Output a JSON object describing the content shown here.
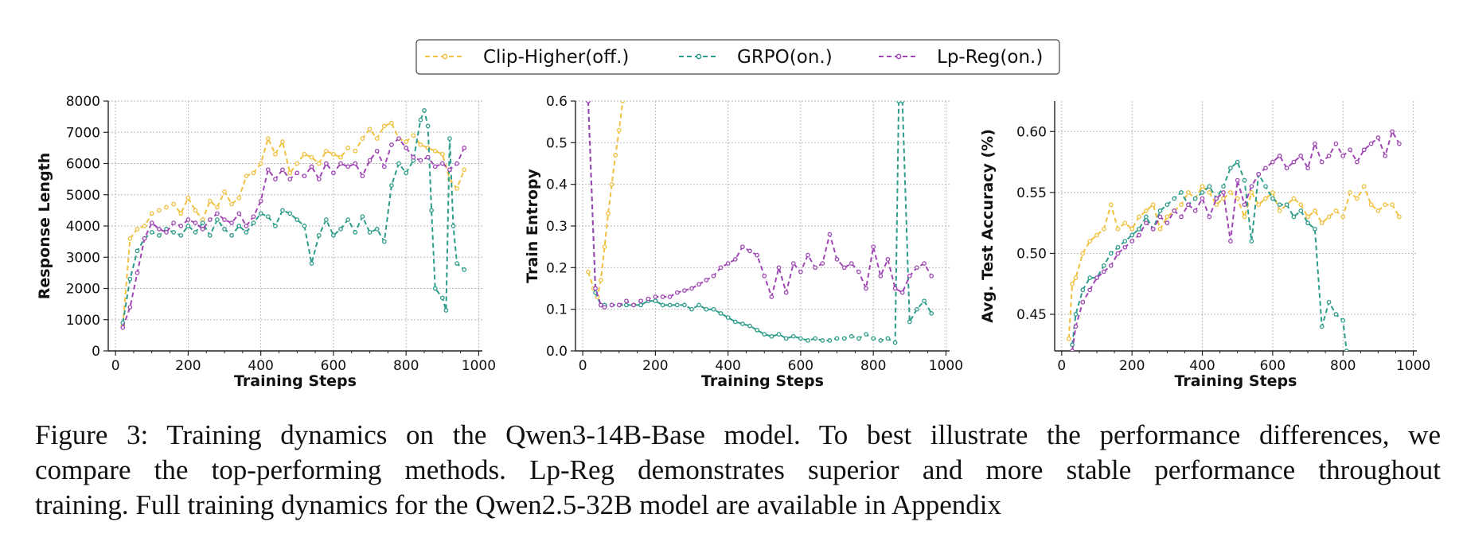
{
  "legend": {
    "entries": [
      {
        "label": "Clip-Higher(off.)",
        "color": "#f0c040",
        "key": "clip"
      },
      {
        "label": "GRPO(on.)",
        "color": "#2e9c8a",
        "key": "grpo"
      },
      {
        "label": "Lp-Reg(on.)",
        "color": "#a046b4",
        "key": "lpreg"
      }
    ]
  },
  "chart_data": [
    {
      "type": "line",
      "xlabel": "Training Steps",
      "ylabel": "Response Length",
      "xlim": [
        -20,
        1010
      ],
      "ylim": [
        0,
        8000
      ],
      "xticks": [
        0,
        200,
        400,
        600,
        800,
        1000
      ],
      "yticks": [
        0,
        1000,
        2000,
        3000,
        4000,
        5000,
        6000,
        7000,
        8000
      ],
      "series": [
        {
          "name": "Clip-Higher(off.)",
          "x": [
            20,
            40,
            60,
            80,
            100,
            120,
            140,
            160,
            180,
            200,
            220,
            240,
            260,
            280,
            300,
            320,
            340,
            360,
            380,
            400,
            420,
            440,
            460,
            480,
            500,
            520,
            540,
            560,
            580,
            600,
            620,
            640,
            660,
            680,
            700,
            720,
            740,
            760,
            780,
            800,
            820,
            840,
            860,
            880,
            900,
            920,
            940,
            960
          ],
          "y": [
            800,
            3600,
            3900,
            4000,
            4400,
            4500,
            4600,
            4700,
            4400,
            4900,
            4500,
            4200,
            4800,
            4600,
            5100,
            4700,
            4900,
            5600,
            5700,
            6000,
            6800,
            6300,
            6700,
            5700,
            6000,
            6300,
            6200,
            6000,
            6400,
            6300,
            6200,
            6500,
            6400,
            6800,
            7100,
            6800,
            7200,
            7300,
            6800,
            6700,
            6900,
            6600,
            6500,
            6400,
            6300,
            5500,
            5200,
            5800
          ]
        },
        {
          "name": "GRPO(on.)",
          "x": [
            20,
            40,
            60,
            80,
            100,
            120,
            140,
            160,
            180,
            200,
            220,
            240,
            260,
            280,
            300,
            320,
            340,
            360,
            380,
            400,
            420,
            440,
            460,
            480,
            500,
            520,
            540,
            560,
            580,
            600,
            620,
            640,
            660,
            680,
            700,
            720,
            740,
            760,
            780,
            800,
            820,
            840,
            850,
            860,
            870,
            880,
            900,
            910,
            920,
            930,
            940,
            960
          ],
          "y": [
            900,
            2300,
            3200,
            3600,
            3800,
            3700,
            3900,
            3800,
            3700,
            4000,
            3800,
            4100,
            3700,
            4200,
            3900,
            3700,
            4000,
            3800,
            4100,
            4400,
            4300,
            4000,
            4500,
            4400,
            4200,
            4000,
            2800,
            3700,
            4200,
            3700,
            3900,
            4200,
            3800,
            4300,
            3800,
            3900,
            3500,
            5300,
            6000,
            5700,
            6100,
            7400,
            7700,
            7200,
            4500,
            2000,
            1700,
            1300,
            6800,
            4000,
            2800,
            2600
          ]
        },
        {
          "name": "Lp-Reg(on.)",
          "x": [
            20,
            40,
            60,
            80,
            100,
            120,
            140,
            160,
            180,
            200,
            220,
            240,
            260,
            280,
            300,
            320,
            340,
            360,
            380,
            400,
            420,
            440,
            460,
            480,
            500,
            520,
            540,
            560,
            580,
            600,
            620,
            640,
            660,
            680,
            700,
            720,
            740,
            760,
            780,
            800,
            820,
            840,
            860,
            880,
            900,
            920,
            940,
            960
          ],
          "y": [
            750,
            1400,
            2500,
            3600,
            4100,
            3900,
            3800,
            4100,
            4000,
            4200,
            4100,
            3900,
            4200,
            4400,
            4200,
            4100,
            4400,
            4000,
            4300,
            4800,
            5800,
            5500,
            5800,
            5500,
            5700,
            5600,
            5900,
            5500,
            6000,
            5700,
            6000,
            5900,
            6000,
            5600,
            6100,
            6400,
            5900,
            6600,
            6800,
            6500,
            6200,
            6100,
            6200,
            5900,
            6000,
            5800,
            6000,
            6500
          ]
        }
      ]
    },
    {
      "type": "line",
      "xlabel": "Training Steps",
      "ylabel": "Train Entropy",
      "xlim": [
        -20,
        1010
      ],
      "ylim": [
        0,
        0.6
      ],
      "xticks": [
        0,
        200,
        400,
        600,
        800,
        1000
      ],
      "yticks": [
        0.0,
        0.1,
        0.2,
        0.3,
        0.4,
        0.5,
        0.6
      ],
      "series": [
        {
          "name": "Clip-Higher(off.)",
          "x": [
            15,
            30,
            40,
            50,
            60,
            70,
            80,
            90,
            100,
            110
          ],
          "y": [
            0.19,
            0.15,
            0.13,
            0.17,
            0.25,
            0.33,
            0.4,
            0.47,
            0.53,
            0.6
          ]
        },
        {
          "name": "GRPO(on.)",
          "x": [
            15,
            35,
            50,
            60,
            80,
            100,
            120,
            140,
            160,
            180,
            200,
            220,
            240,
            260,
            280,
            300,
            320,
            340,
            360,
            380,
            400,
            420,
            440,
            460,
            480,
            500,
            520,
            540,
            560,
            580,
            600,
            620,
            640,
            660,
            680,
            700,
            720,
            740,
            760,
            780,
            800,
            820,
            840,
            860,
            870,
            880,
            900,
            920,
            940,
            960
          ],
          "y": [
            0.6,
            0.14,
            0.11,
            0.11,
            0.11,
            0.11,
            0.11,
            0.11,
            0.11,
            0.12,
            0.12,
            0.11,
            0.11,
            0.11,
            0.11,
            0.1,
            0.11,
            0.1,
            0.1,
            0.09,
            0.08,
            0.07,
            0.065,
            0.06,
            0.05,
            0.04,
            0.035,
            0.04,
            0.03,
            0.035,
            0.03,
            0.025,
            0.03,
            0.025,
            0.025,
            0.03,
            0.03,
            0.035,
            0.03,
            0.04,
            0.03,
            0.025,
            0.03,
            0.02,
            0.6,
            0.6,
            0.07,
            0.1,
            0.12,
            0.09
          ]
        },
        {
          "name": "Lp-Reg(on.)",
          "x": [
            15,
            35,
            50,
            60,
            80,
            100,
            120,
            140,
            160,
            180,
            200,
            220,
            240,
            260,
            280,
            300,
            320,
            340,
            360,
            380,
            400,
            420,
            440,
            460,
            480,
            500,
            520,
            540,
            560,
            580,
            600,
            620,
            640,
            660,
            680,
            700,
            720,
            740,
            760,
            780,
            800,
            820,
            840,
            860,
            880,
            900,
            920,
            940,
            960
          ],
          "y": [
            0.6,
            0.15,
            0.11,
            0.105,
            0.11,
            0.11,
            0.12,
            0.11,
            0.12,
            0.125,
            0.13,
            0.13,
            0.13,
            0.14,
            0.145,
            0.15,
            0.16,
            0.17,
            0.18,
            0.2,
            0.21,
            0.22,
            0.25,
            0.24,
            0.23,
            0.18,
            0.13,
            0.2,
            0.14,
            0.21,
            0.19,
            0.23,
            0.2,
            0.21,
            0.28,
            0.22,
            0.2,
            0.21,
            0.19,
            0.15,
            0.25,
            0.18,
            0.22,
            0.15,
            0.14,
            0.18,
            0.2,
            0.21,
            0.18
          ]
        }
      ]
    },
    {
      "type": "line",
      "xlabel": "Training Steps",
      "ylabel": "Avg. Test Accuracy (%)",
      "xlim": [
        -20,
        1010
      ],
      "ylim": [
        0.42,
        0.625
      ],
      "xticks": [
        0,
        200,
        400,
        600,
        800,
        1000
      ],
      "yticks": [
        0.45,
        0.5,
        0.55,
        0.6
      ],
      "series": [
        {
          "name": "Clip-Higher(off.)",
          "x": [
            20,
            30,
            40,
            60,
            80,
            100,
            120,
            140,
            160,
            180,
            200,
            220,
            240,
            260,
            280,
            300,
            320,
            340,
            360,
            380,
            400,
            420,
            440,
            460,
            480,
            500,
            520,
            540,
            560,
            580,
            600,
            620,
            640,
            660,
            680,
            700,
            720,
            740,
            760,
            780,
            800,
            820,
            840,
            860,
            880,
            900,
            920,
            940,
            960
          ],
          "y": [
            0.43,
            0.475,
            0.48,
            0.5,
            0.51,
            0.515,
            0.52,
            0.54,
            0.52,
            0.525,
            0.52,
            0.53,
            0.535,
            0.54,
            0.52,
            0.53,
            0.535,
            0.54,
            0.55,
            0.545,
            0.555,
            0.55,
            0.54,
            0.545,
            0.55,
            0.545,
            0.53,
            0.55,
            0.54,
            0.545,
            0.55,
            0.535,
            0.54,
            0.545,
            0.54,
            0.53,
            0.535,
            0.525,
            0.53,
            0.535,
            0.53,
            0.55,
            0.545,
            0.555,
            0.54,
            0.535,
            0.54,
            0.54,
            0.53
          ]
        },
        {
          "name": "GRPO(on.)",
          "x": [
            30,
            40,
            60,
            80,
            100,
            120,
            140,
            160,
            180,
            200,
            220,
            240,
            260,
            280,
            300,
            320,
            340,
            360,
            380,
            400,
            420,
            440,
            460,
            480,
            500,
            520,
            540,
            560,
            580,
            600,
            620,
            640,
            660,
            680,
            700,
            720,
            740,
            760,
            780,
            800,
            810
          ],
          "y": [
            0.425,
            0.45,
            0.47,
            0.48,
            0.48,
            0.49,
            0.5,
            0.505,
            0.51,
            0.515,
            0.52,
            0.53,
            0.52,
            0.535,
            0.54,
            0.545,
            0.55,
            0.54,
            0.545,
            0.55,
            0.555,
            0.545,
            0.555,
            0.57,
            0.575,
            0.56,
            0.51,
            0.565,
            0.555,
            0.545,
            0.54,
            0.54,
            0.53,
            0.535,
            0.525,
            0.52,
            0.44,
            0.46,
            0.45,
            0.445,
            0.42
          ]
        },
        {
          "name": "Lp-Reg(on.)",
          "x": [
            30,
            40,
            60,
            80,
            100,
            120,
            140,
            160,
            180,
            200,
            220,
            240,
            260,
            280,
            300,
            320,
            340,
            360,
            380,
            400,
            420,
            440,
            460,
            480,
            500,
            520,
            540,
            560,
            580,
            600,
            620,
            640,
            660,
            680,
            700,
            720,
            740,
            760,
            780,
            800,
            820,
            840,
            860,
            880,
            900,
            920,
            940,
            960
          ],
          "y": [
            0.42,
            0.44,
            0.46,
            0.47,
            0.48,
            0.485,
            0.49,
            0.5,
            0.505,
            0.51,
            0.515,
            0.525,
            0.52,
            0.53,
            0.525,
            0.535,
            0.53,
            0.54,
            0.535,
            0.545,
            0.53,
            0.545,
            0.55,
            0.51,
            0.56,
            0.54,
            0.555,
            0.565,
            0.57,
            0.575,
            0.58,
            0.57,
            0.575,
            0.58,
            0.57,
            0.59,
            0.575,
            0.58,
            0.59,
            0.58,
            0.585,
            0.575,
            0.585,
            0.59,
            0.595,
            0.58,
            0.6,
            0.59
          ]
        }
      ]
    }
  ],
  "caption": {
    "line1": "Figure 3: Training dynamics on the Qwen3-14B-Base model. To best illustrate the performance differences, we",
    "line2": "compare the top-performing methods. Lp-Reg demonstrates superior and more stable performance throughout",
    "line3": "training. Full training dynamics for the Qwen2.5-32B model are available in Appendix"
  }
}
